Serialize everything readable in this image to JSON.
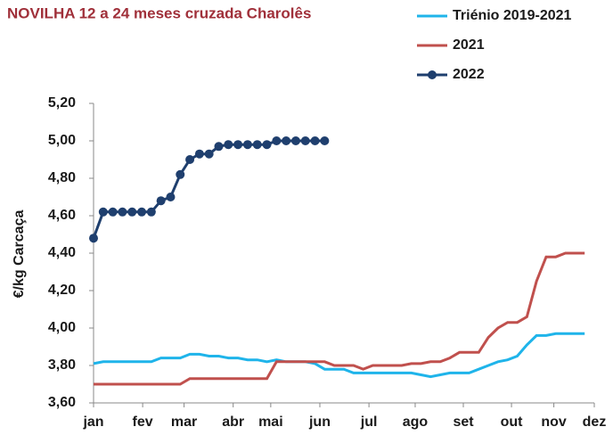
{
  "chart_data": {
    "type": "line",
    "title": "NOVILHA 12 a 24 meses cruzada Charolês",
    "y_label": "€/kg Carcaça",
    "x": [
      1,
      2,
      3,
      4,
      5,
      6,
      7,
      8,
      9,
      10,
      11,
      12,
      13,
      14,
      15,
      16,
      17,
      18,
      19,
      20,
      21,
      22,
      23,
      24,
      25,
      26,
      27,
      28,
      29,
      30,
      31,
      32,
      33,
      34,
      35,
      36,
      37,
      38,
      39,
      40,
      41,
      42,
      43,
      44,
      45,
      46,
      47,
      48,
      49,
      50,
      51,
      52
    ],
    "xlim": [
      1,
      53
    ],
    "xticks": [
      {
        "value": 1,
        "label": "jan"
      },
      {
        "value": 6.1,
        "label": "fev"
      },
      {
        "value": 10.4,
        "label": "mar"
      },
      {
        "value": 15.5,
        "label": "abr"
      },
      {
        "value": 19.4,
        "label": "mai"
      },
      {
        "value": 24.5,
        "label": "jun"
      },
      {
        "value": 29.6,
        "label": "jul"
      },
      {
        "value": 34.4,
        "label": "ago"
      },
      {
        "value": 39.4,
        "label": "set"
      },
      {
        "value": 44.4,
        "label": "out"
      },
      {
        "value": 48.8,
        "label": "nov"
      },
      {
        "value": 53,
        "label": "dez"
      }
    ],
    "ylim": [
      3.6,
      5.2
    ],
    "yticks": [
      {
        "value": 3.6,
        "label": "3,60"
      },
      {
        "value": 3.8,
        "label": "3,80"
      },
      {
        "value": 4.0,
        "label": "4,00"
      },
      {
        "value": 4.2,
        "label": "4,20"
      },
      {
        "value": 4.4,
        "label": "4,40"
      },
      {
        "value": 4.6,
        "label": "4,60"
      },
      {
        "value": 4.8,
        "label": "4,80"
      },
      {
        "value": 5.0,
        "label": "5,00"
      },
      {
        "value": 5.2,
        "label": "5,20"
      }
    ],
    "series": [
      {
        "name": "Triénio 2019-2021",
        "color": "#1fb4ea",
        "marker": "none",
        "values": [
          3.81,
          3.82,
          3.82,
          3.82,
          3.82,
          3.82,
          3.82,
          3.84,
          3.84,
          3.84,
          3.86,
          3.86,
          3.85,
          3.85,
          3.84,
          3.84,
          3.83,
          3.83,
          3.82,
          3.83,
          3.82,
          3.82,
          3.82,
          3.81,
          3.78,
          3.78,
          3.78,
          3.76,
          3.76,
          3.76,
          3.76,
          3.76,
          3.76,
          3.76,
          3.75,
          3.74,
          3.75,
          3.76,
          3.76,
          3.76,
          3.78,
          3.8,
          3.82,
          3.83,
          3.85,
          3.91,
          3.96,
          3.96,
          3.97,
          3.97,
          3.97,
          3.97
        ]
      },
      {
        "name": "2021",
        "color": "#c0504d",
        "marker": "none",
        "values": [
          3.7,
          3.7,
          3.7,
          3.7,
          3.7,
          3.7,
          3.7,
          3.7,
          3.7,
          3.7,
          3.73,
          3.73,
          3.73,
          3.73,
          3.73,
          3.73,
          3.73,
          3.73,
          3.73,
          3.82,
          3.82,
          3.82,
          3.82,
          3.82,
          3.82,
          3.8,
          3.8,
          3.8,
          3.78,
          3.8,
          3.8,
          3.8,
          3.8,
          3.81,
          3.81,
          3.82,
          3.82,
          3.84,
          3.87,
          3.87,
          3.87,
          3.95,
          4.0,
          4.03,
          4.03,
          4.06,
          4.25,
          4.38,
          4.38,
          4.4,
          4.4,
          4.4
        ]
      },
      {
        "name": "2022",
        "color": "#1f3f6e",
        "marker": "circle",
        "values": [
          4.48,
          4.62,
          4.62,
          4.62,
          4.62,
          4.62,
          4.62,
          4.68,
          4.7,
          4.82,
          4.9,
          4.93,
          4.93,
          4.97,
          4.98,
          4.98,
          4.98,
          4.98,
          4.98,
          5.0,
          5.0,
          5.0,
          5.0,
          5.0,
          5.0,
          null,
          null,
          null,
          null,
          null,
          null,
          null,
          null,
          null,
          null,
          null,
          null,
          null,
          null,
          null,
          null,
          null,
          null,
          null,
          null,
          null,
          null,
          null,
          null,
          null,
          null,
          null
        ]
      }
    ]
  }
}
